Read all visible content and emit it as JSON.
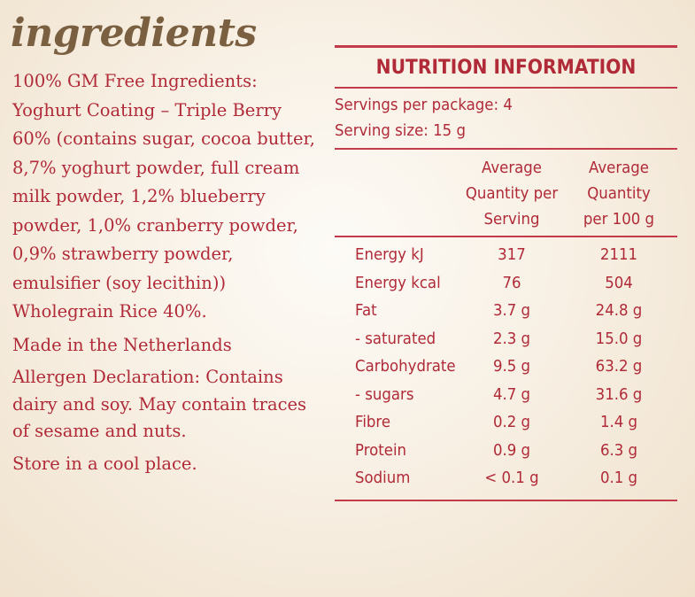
{
  "heading": "ingredients",
  "ingredients_text": "100% GM Free Ingredients: Yoghurt Coating – Triple Berry 60% (contains sugar, cocoa butter, 8,7% yoghurt powder, full cream milk powder, 1,2% blueberry powder, 1,0% cranberry powder, 0,9% strawberry powder, emulsifier (soy lecithin))  Wholegrain Rice 40%.",
  "made_in": "Made in the Netherlands",
  "allergen": "Allergen Declaration: Contains dairy and soy. May contain traces of sesame and nuts.",
  "storage": "Store in a cool place.",
  "nutrition": {
    "title": "NUTRITION INFORMATION",
    "servings_per_package": "Servings per package: 4",
    "serving_size": "Serving size: 15 g",
    "col1_header": [
      "Average",
      "Quantity per",
      "Serving"
    ],
    "col2_header": [
      "Average",
      "Quantity",
      "per 100 g"
    ],
    "rows": [
      {
        "name": "Energy kJ",
        "per_serving": "317",
        "per_100g": "2111"
      },
      {
        "name": "Energy kcal",
        "per_serving": "76",
        "per_100g": "504"
      },
      {
        "name": "Fat",
        "per_serving": "3.7 g",
        "per_100g": "24.8 g"
      },
      {
        "name": "- saturated",
        "per_serving": "2.3 g",
        "per_100g": "15.0 g"
      },
      {
        "name": "Carbohydrate",
        "per_serving": "9.5 g",
        "per_100g": "63.2 g"
      },
      {
        "name": "- sugars",
        "per_serving": "4.7 g",
        "per_100g": "31.6 g"
      },
      {
        "name": "Fibre",
        "per_serving": "0.2 g",
        "per_100g": "1.4 g"
      },
      {
        "name": "Protein",
        "per_serving": "0.9 g",
        "per_100g": "6.3 g"
      },
      {
        "name": "Sodium",
        "per_serving": "< 0.1 g",
        "per_100g": "0.1 g"
      }
    ]
  },
  "colors": {
    "text_red": "#b02a38",
    "heading_brown": "#7b5f41",
    "rule": "#c33b4a"
  }
}
